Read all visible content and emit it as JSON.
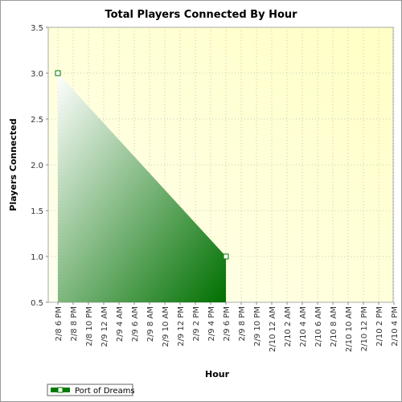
{
  "chart_data": {
    "type": "area",
    "title": "Total Players Connected By Hour",
    "xlabel": "Hour",
    "ylabel": "Players Connected",
    "ylim": [
      0.5,
      3.5
    ],
    "yticks": [
      0.5,
      1.0,
      1.5,
      2.0,
      2.5,
      3.0,
      3.5
    ],
    "categories": [
      "2/8 6 PM",
      "2/8 8 PM",
      "2/8 10 PM",
      "2/9 12 AM",
      "2/9 4 AM",
      "2/9 6 AM",
      "2/9 8 AM",
      "2/9 10 AM",
      "2/9 12 PM",
      "2/9 2 PM",
      "2/9 4 PM",
      "2/9 6 PM",
      "2/9 8 PM",
      "2/9 10 PM",
      "2/10 12 AM",
      "2/10 2 AM",
      "2/10 4 AM",
      "2/10 6 AM",
      "2/10 8 AM",
      "2/10 10 AM",
      "2/10 12 PM",
      "2/10 2 PM",
      "2/10 4 PM"
    ],
    "grid": true,
    "legend_position": "bottom-left",
    "series": [
      {
        "name": "Port of Dreams",
        "color": "#007a00",
        "points": [
          {
            "x": "2/8 6 PM",
            "y": 3.0
          },
          {
            "x": "2/9 6 PM",
            "y": 1.0
          }
        ]
      }
    ]
  }
}
